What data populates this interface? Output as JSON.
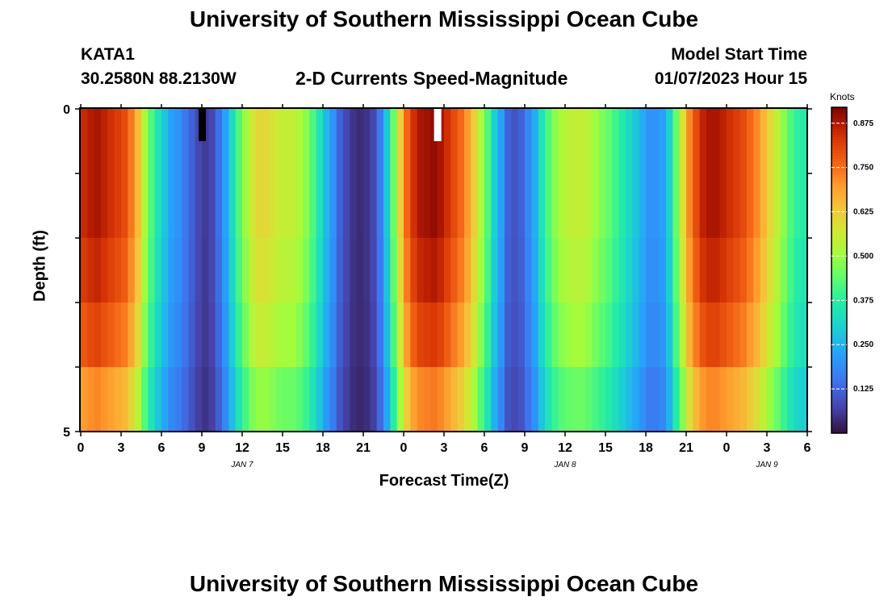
{
  "page_title": "University of Southern Mississippi Ocean Cube",
  "footer_title": "University of Southern Mississippi Ocean Cube",
  "station": {
    "id": "KATA1",
    "coords": "30.2580N  88.2130W"
  },
  "product": "2-D Currents Speed-Magnitude",
  "model_start": {
    "label": "Model Start Time",
    "value": "01/07/2023 Hour 15"
  },
  "chart_data": {
    "type": "heatmap",
    "title": "2-D Currents Speed-Magnitude",
    "xlabel": "Forecast Time(Z)",
    "ylabel": "Depth (ft)",
    "ylim": [
      0,
      5
    ],
    "y_ticks": [
      "0",
      "5"
    ],
    "x_tick_labels": [
      "0",
      "3",
      "6",
      "9",
      "12",
      "15",
      "18",
      "21",
      "0",
      "3",
      "6",
      "9",
      "12",
      "15",
      "18",
      "21",
      "0",
      "3",
      "6"
    ],
    "date_labels": [
      {
        "text": "JAN 7",
        "hour": 12
      },
      {
        "text": "JAN 8",
        "hour": 36
      },
      {
        "text": "JAN 9",
        "hour": 51
      }
    ],
    "hours": [
      0,
      0.5,
      1,
      1.5,
      2,
      2.5,
      3,
      3.5,
      4,
      4.5,
      5,
      5.5,
      6,
      6.5,
      7,
      7.5,
      8,
      8.5,
      9,
      9.5,
      10,
      10.5,
      11,
      11.5,
      12,
      12.5,
      13,
      13.5,
      14,
      14.5,
      15,
      15.5,
      16,
      16.5,
      17,
      17.5,
      18,
      18.5,
      19,
      19.5,
      20,
      20.5,
      21,
      21.5,
      22,
      22.5,
      23,
      23.5,
      24,
      24.5,
      25,
      25.5,
      26,
      26.5,
      27,
      27.5,
      28,
      28.5,
      29,
      29.5,
      30,
      30.5,
      31,
      31.5,
      32,
      32.5,
      33,
      33.5,
      34,
      34.5,
      35,
      35.5,
      36,
      36.5,
      37,
      37.5,
      38,
      38.5,
      39,
      39.5,
      40,
      40.5,
      41,
      41.5,
      42,
      42.5,
      43,
      43.5,
      44,
      44.5,
      45,
      45.5,
      46,
      46.5,
      47,
      47.5,
      48,
      48.5,
      49,
      49.5,
      50,
      50.5,
      51,
      51.5,
      52,
      52.5,
      53,
      53.5
    ],
    "depth_levels": [
      0,
      1,
      2,
      3,
      4,
      5
    ],
    "surface_speed": [
      0.85,
      0.87,
      0.88,
      0.86,
      0.84,
      0.82,
      0.8,
      0.74,
      0.65,
      0.52,
      0.42,
      0.34,
      0.28,
      0.22,
      0.2,
      0.16,
      0.12,
      0.08,
      0.06,
      0.08,
      0.14,
      0.22,
      0.32,
      0.42,
      0.5,
      0.57,
      0.6,
      0.6,
      0.58,
      0.56,
      0.55,
      0.55,
      0.52,
      0.48,
      0.42,
      0.34,
      0.26,
      0.2,
      0.12,
      0.08,
      0.05,
      0.04,
      0.05,
      0.08,
      0.16,
      0.28,
      0.45,
      0.62,
      0.76,
      0.84,
      0.88,
      0.89,
      0.9,
      0.88,
      0.84,
      0.8,
      0.76,
      0.7,
      0.62,
      0.52,
      0.42,
      0.3,
      0.22,
      0.12,
      0.1,
      0.12,
      0.18,
      0.24,
      0.34,
      0.42,
      0.48,
      0.52,
      0.54,
      0.55,
      0.55,
      0.53,
      0.5,
      0.47,
      0.44,
      0.4,
      0.36,
      0.32,
      0.28,
      0.24,
      0.2,
      0.2,
      0.22,
      0.3,
      0.45,
      0.58,
      0.72,
      0.8,
      0.86,
      0.88,
      0.88,
      0.86,
      0.84,
      0.82,
      0.8,
      0.76,
      0.72,
      0.66,
      0.6,
      0.55,
      0.48,
      0.42,
      0.38,
      0.36
    ],
    "depth_factors": [
      1.0,
      1.0,
      0.97,
      0.92,
      0.82,
      0.72
    ],
    "colorbar": {
      "label": "Knots",
      "range": [
        0,
        0.92
      ],
      "ticks": [
        "0.875",
        "0.750",
        "0.625",
        "0.500",
        "0.375",
        "0.250",
        "0.125"
      ],
      "tick_values": [
        0.875,
        0.75,
        0.625,
        0.5,
        0.375,
        0.25,
        0.125
      ]
    },
    "missing_markers": [
      {
        "hour": 9.0,
        "color": "#000000"
      },
      {
        "hour": 26.5,
        "color": "#ffffff"
      }
    ]
  }
}
